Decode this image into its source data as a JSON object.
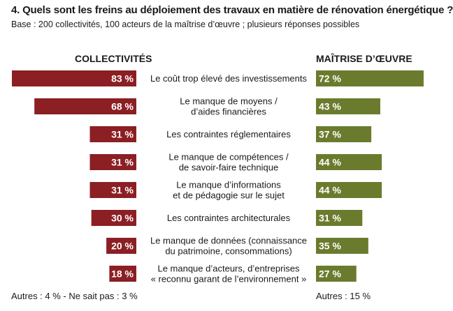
{
  "title": "4. Quels sont les freins au déploiement des travaux en matière de rénovation énergétique ?",
  "subtitle": "Base : 200 collectivités, 100 acteurs de la maîtrise d’œuvre ; plusieurs réponses possibles",
  "colors": {
    "left": "#8b1f24",
    "right": "#6b7b2e"
  },
  "chart_data": {
    "type": "bar",
    "title": "4. Quels sont les freins au déploiement des travaux en matière de rénovation énergétique ?",
    "categories": [
      [
        "Le coût trop élevé des investissements"
      ],
      [
        "Le manque de moyens /",
        "d’aides financières"
      ],
      [
        "Les contraintes réglementaires"
      ],
      [
        "Le manque de compétences /",
        "de savoir-faire technique"
      ],
      [
        "Le manque d’informations",
        "et de pédagogie sur le sujet"
      ],
      [
        "Les contraintes architecturales"
      ],
      [
        "Le manque de données (connaissance",
        "du patrimoine, consommations)"
      ],
      [
        "Le manque d’acteurs, d’entreprises",
        "« reconnu garant de l’environnement »"
      ]
    ],
    "series": [
      {
        "name": "COLLECTIVITÉS",
        "values": [
          83,
          68,
          31,
          31,
          31,
          30,
          20,
          18
        ],
        "labels": [
          "83 %",
          "68 %",
          "31 %",
          "31 %",
          "31 %",
          "30 %",
          "20 %",
          "18 %"
        ]
      },
      {
        "name": "MAÎTRISE D’ŒUVRE",
        "values": [
          72,
          43,
          37,
          44,
          44,
          31,
          35,
          27
        ],
        "labels": [
          "72 %",
          "43 %",
          "37 %",
          "44 %",
          "44 %",
          "31 %",
          "35 %",
          "27 %"
        ]
      }
    ],
    "footnotes": {
      "left": "Autres : 4 % - Ne sait pas : 3 %",
      "right": "Autres : 15 %"
    }
  }
}
